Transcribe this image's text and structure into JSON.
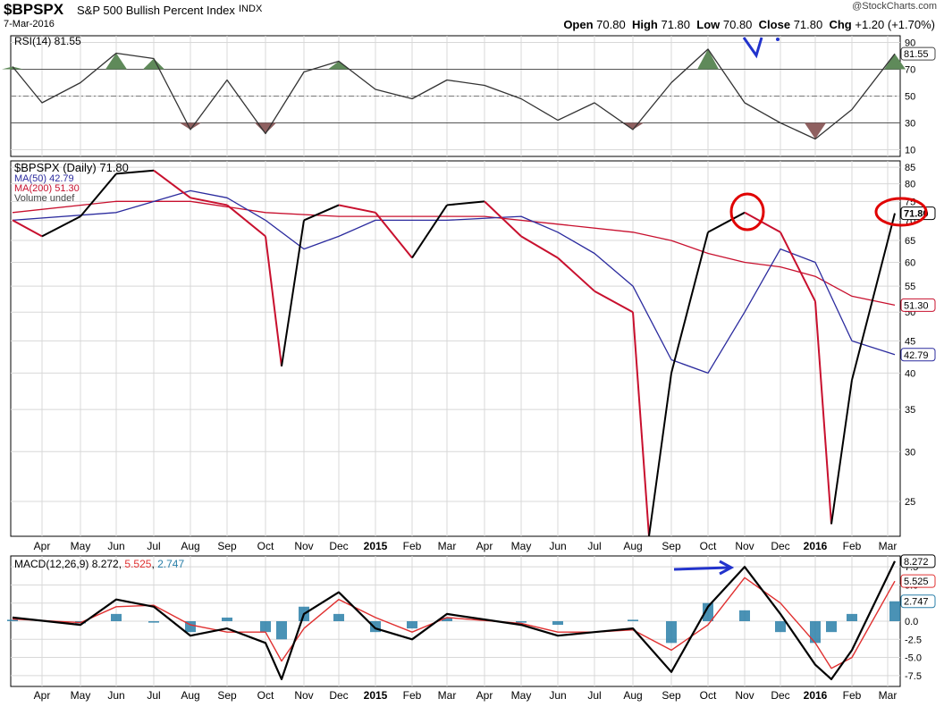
{
  "header": {
    "symbol": "$BPSPX",
    "name": "S&P 500 Bullish Percent Index",
    "exchange": "INDX",
    "date": "7-Mar-2016",
    "brand": "@StockCharts.com",
    "open_label": "Open",
    "open": "70.80",
    "high_label": "High",
    "high": "71.80",
    "low_label": "Low",
    "low": "70.80",
    "close_label": "Close",
    "close": "71.80",
    "chg_label": "Chg",
    "chg": "+1.20 (+1.70%)"
  },
  "colors": {
    "price": "#000000",
    "price_down": "#c8102e",
    "ma50": "#2b2b9e",
    "ma200": "#c8102e",
    "rsi_over": "#5f8a5a",
    "rsi_under": "#8f6060",
    "macd_line": "#000000",
    "macd_signal": "#e03030",
    "macd_hist": "#2a7fa8",
    "annotation_red": "#e00000",
    "annotation_blue": "#2233cc",
    "grid": "#d8d8d8"
  },
  "x_axis_labels": [
    "Apr",
    "May",
    "Jun",
    "Jul",
    "Aug",
    "Sep",
    "Oct",
    "Nov",
    "Dec",
    "2015",
    "Feb",
    "Mar",
    "Apr",
    "May",
    "Jun",
    "Jul",
    "Aug",
    "Sep",
    "Oct",
    "Nov",
    "Dec",
    "2016",
    "Feb",
    "Mar"
  ],
  "chart_data": [
    {
      "type": "line",
      "panel": "RSI",
      "legend": "RSI(14) 81.55",
      "last_value": "81.55",
      "yticks": [
        90,
        70,
        50,
        30,
        10
      ],
      "ylim": [
        5,
        95
      ],
      "overbought": 70,
      "oversold": 30,
      "x": [
        "2014-03",
        "2014-04",
        "2014-05",
        "2014-06",
        "2014-07",
        "2014-08",
        "2014-09",
        "2014-10",
        "2014-11",
        "2014-12",
        "2015-01",
        "2015-02",
        "2015-03",
        "2015-04",
        "2015-05",
        "2015-06",
        "2015-07",
        "2015-08",
        "2015-09",
        "2015-10",
        "2015-11",
        "2015-12",
        "2016-01",
        "2016-02",
        "2016-03"
      ],
      "values": [
        72,
        45,
        60,
        82,
        78,
        25,
        62,
        22,
        68,
        76,
        55,
        48,
        62,
        58,
        48,
        32,
        45,
        25,
        60,
        85,
        45,
        30,
        18,
        40,
        81.55
      ]
    },
    {
      "type": "line",
      "panel": "Price",
      "legend": [
        "$BPSPX (Daily) 71.80",
        "MA(50) 42.79",
        "MA(200) 51.30",
        "Volume undef"
      ],
      "yticks": [
        85,
        80,
        75,
        70,
        65,
        60,
        55,
        50,
        45,
        40,
        35,
        30,
        25
      ],
      "ylim": [
        22,
        87
      ],
      "labels": {
        "close": "71.80",
        "ma200": "51.30",
        "ma50": "42.79"
      },
      "series": [
        {
          "name": "$BPSPX (Daily)",
          "x": [
            "2014-03",
            "2014-04",
            "2014-05",
            "2014-06",
            "2014-07",
            "2014-08",
            "2014-09",
            "2014-10",
            "2014-10b",
            "2014-11",
            "2014-12",
            "2015-01",
            "2015-02",
            "2015-03",
            "2015-04",
            "2015-05",
            "2015-06",
            "2015-07",
            "2015-08",
            "2015-08b",
            "2015-09",
            "2015-10",
            "2015-11",
            "2015-12",
            "2016-01",
            "2016-01b",
            "2016-02",
            "2016-03"
          ],
          "values": [
            70,
            66,
            71,
            83,
            84,
            76,
            74,
            66,
            41,
            70,
            74,
            72,
            61,
            74,
            75,
            66,
            61,
            54,
            50,
            22,
            40,
            67,
            72,
            67,
            52,
            23,
            39,
            71.8
          ]
        },
        {
          "name": "MA(50)",
          "x": [
            "2014-03",
            "2014-06",
            "2014-08",
            "2014-09",
            "2014-10",
            "2014-11",
            "2014-12",
            "2015-01",
            "2015-03",
            "2015-05",
            "2015-06",
            "2015-07",
            "2015-08",
            "2015-09",
            "2015-10",
            "2015-11",
            "2015-12",
            "2016-01",
            "2016-02",
            "2016-03"
          ],
          "values": [
            70,
            72,
            78,
            76,
            70,
            63,
            66,
            70,
            70,
            71,
            67,
            62,
            55,
            42,
            40,
            50,
            63,
            60,
            45,
            42.79
          ]
        },
        {
          "name": "MA(200)",
          "x": [
            "2014-03",
            "2014-06",
            "2014-08",
            "2014-10",
            "2014-12",
            "2015-02",
            "2015-04",
            "2015-06",
            "2015-08",
            "2015-09",
            "2015-10",
            "2015-11",
            "2015-12",
            "2016-01",
            "2016-02",
            "2016-03"
          ],
          "values": [
            72,
            75,
            75,
            72,
            71,
            71,
            71,
            69,
            67,
            65,
            62,
            60,
            59,
            57,
            53,
            51.3
          ]
        }
      ]
    },
    {
      "type": "line",
      "panel": "MACD",
      "legend": "MACD(12,26,9) 8.272, 5.525, 2.747",
      "legend_macd_label": "MACD(12,26,9)",
      "legend_macd": "8.272",
      "legend_signal": "5.525",
      "legend_hist": "2.747",
      "yticks": [
        7.5,
        5.0,
        2.5,
        0.0,
        -2.5,
        -5.0,
        -7.5
      ],
      "ylim": [
        -9,
        9
      ],
      "x": [
        "2014-03",
        "2014-05",
        "2014-06",
        "2014-07",
        "2014-08",
        "2014-09",
        "2014-10",
        "2014-10b",
        "2014-11",
        "2014-12",
        "2015-01",
        "2015-02",
        "2015-03",
        "2015-05",
        "2015-06",
        "2015-07",
        "2015-08",
        "2015-09",
        "2015-10",
        "2015-11",
        "2015-12",
        "2016-01",
        "2016-01b",
        "2016-02",
        "2016-03"
      ],
      "series": [
        {
          "name": "MACD",
          "values": [
            0.5,
            -0.5,
            3,
            2,
            -2,
            -1,
            -3,
            -8,
            1,
            4,
            -1,
            -2.5,
            1,
            -0.5,
            -2,
            -1.5,
            -1,
            -7,
            2,
            7.5,
            1,
            -6,
            -8,
            -4,
            8.272
          ]
        },
        {
          "name": "Signal",
          "values": [
            0.3,
            -0.2,
            2,
            2.2,
            -0.5,
            -1.5,
            -1.5,
            -5.5,
            -1,
            3,
            0.5,
            -1.5,
            0.5,
            -0.3,
            -1.5,
            -1.5,
            -1.2,
            -4,
            -0.5,
            6,
            2.5,
            -3,
            -6.5,
            -5,
            5.525
          ]
        },
        {
          "name": "Histogram",
          "values": [
            0.2,
            -0.3,
            1,
            -0.2,
            -1.5,
            0.5,
            -1.5,
            -2.5,
            2,
            1,
            -1.5,
            -1,
            0.5,
            -0.2,
            -0.5,
            0,
            0.2,
            -3,
            2.5,
            1.5,
            -1.5,
            -3,
            -1.5,
            1,
            2.747
          ]
        }
      ]
    }
  ]
}
